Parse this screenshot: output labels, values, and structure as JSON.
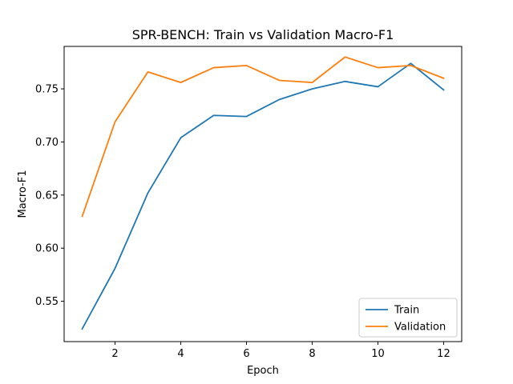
{
  "chart_data": {
    "type": "line",
    "title": "SPR-BENCH: Train vs Validation Macro-F1",
    "xlabel": "Epoch",
    "ylabel": "Macro-F1",
    "xlim": [
      0.45,
      12.55
    ],
    "ylim": [
      0.512,
      0.79
    ],
    "xticks": [
      2,
      4,
      6,
      8,
      10,
      12
    ],
    "yticks": [
      0.55,
      0.6,
      0.65,
      0.7,
      0.75
    ],
    "ytick_labels": [
      "0.55",
      "0.60",
      "0.65",
      "0.70",
      "0.75"
    ],
    "grid": false,
    "legend_position": "lower-right",
    "x": [
      1,
      2,
      3,
      4,
      5,
      6,
      7,
      8,
      9,
      10,
      11,
      12
    ],
    "series": [
      {
        "name": "Train",
        "color": "#1f77b4",
        "values": [
          0.524,
          0.581,
          0.652,
          0.704,
          0.725,
          0.724,
          0.74,
          0.75,
          0.757,
          0.752,
          0.774,
          0.749
        ]
      },
      {
        "name": "Validation",
        "color": "#ff7f0e",
        "values": [
          0.63,
          0.719,
          0.766,
          0.756,
          0.77,
          0.772,
          0.758,
          0.756,
          0.78,
          0.77,
          0.772,
          0.76
        ]
      }
    ]
  }
}
